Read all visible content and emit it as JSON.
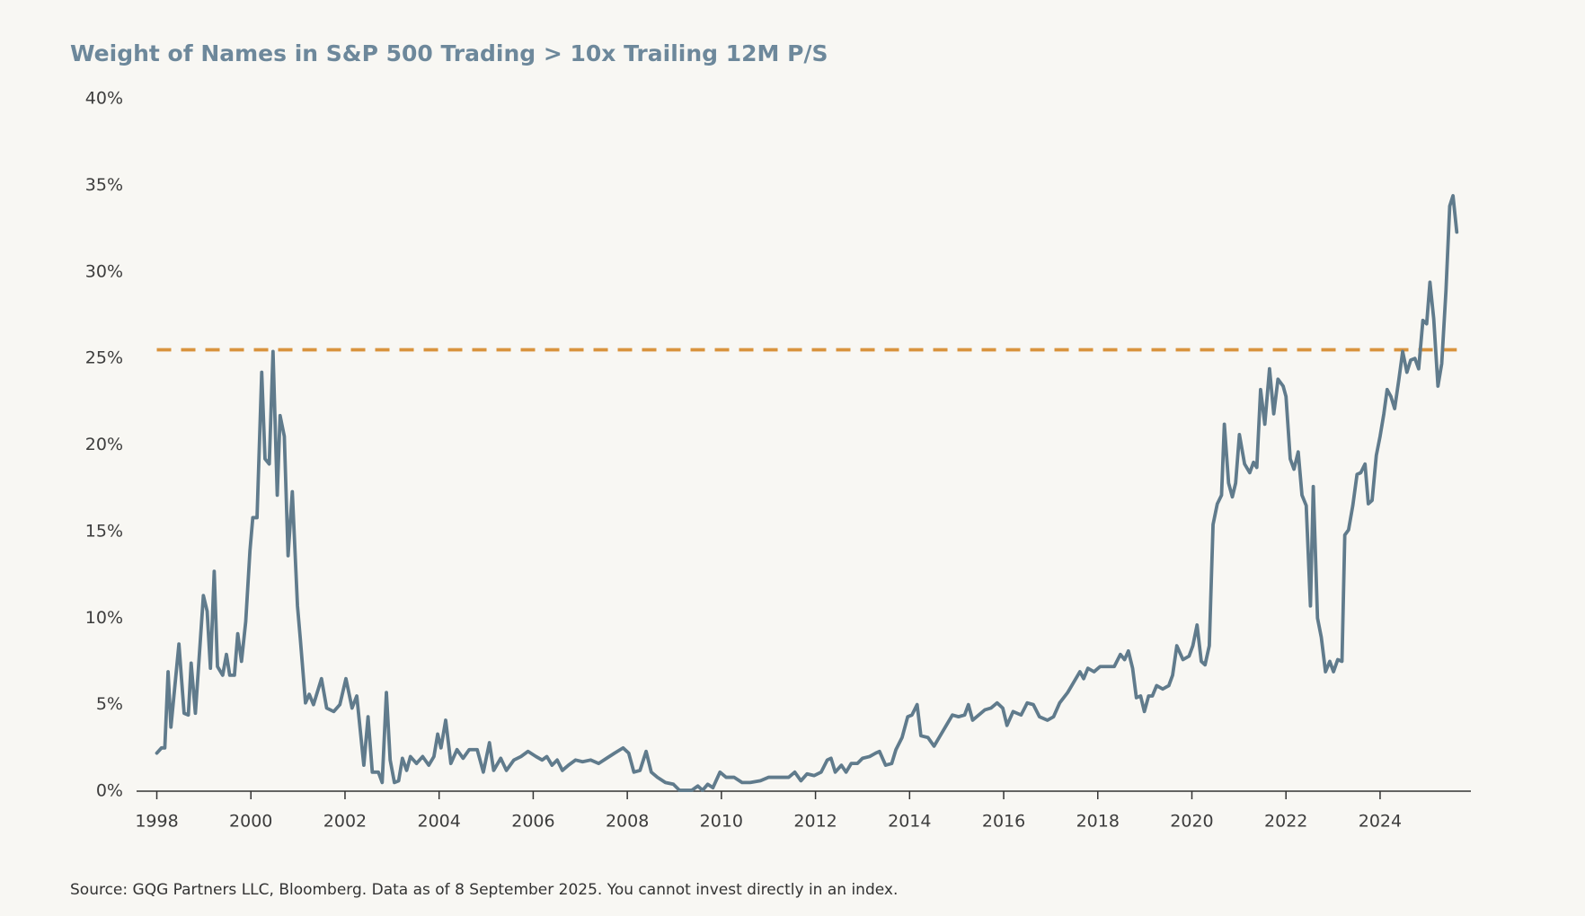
{
  "chart_data": {
    "type": "line",
    "title": "Weight of Names in S&P 500 Trading > 10x Trailing 12M P/S",
    "source": "Source: GQG Partners LLC, Bloomberg. Data as of 8 September 2025. You cannot invest directly in an index.",
    "color": "#607b8c",
    "x": [
      1998.0,
      1998.1,
      1998.17,
      1998.24,
      1998.3,
      1998.47,
      1998.58,
      1998.67,
      1998.73,
      1998.82,
      1998.99,
      1999.07,
      1999.14,
      1999.22,
      1999.29,
      1999.4,
      1999.48,
      1999.55,
      1999.65,
      1999.72,
      1999.8,
      1999.89,
      1999.98,
      2000.04,
      2000.13,
      2000.23,
      2000.3,
      2000.39,
      2000.47,
      2000.56,
      2000.62,
      2000.71,
      2000.79,
      2000.88,
      2000.99,
      2001.05,
      2001.16,
      2001.24,
      2001.33,
      2001.5,
      2001.61,
      2001.76,
      2001.89,
      2002.02,
      2002.15,
      2002.25,
      2002.4,
      2002.49,
      2002.58,
      2002.71,
      2002.79,
      2002.88,
      2002.96,
      2003.05,
      2003.14,
      2003.22,
      2003.31,
      2003.39,
      2003.52,
      2003.65,
      2003.78,
      2003.89,
      2003.97,
      2004.04,
      2004.14,
      2004.25,
      2004.38,
      2004.51,
      2004.64,
      2004.81,
      2004.94,
      2005.07,
      2005.16,
      2005.31,
      2005.43,
      2005.59,
      2005.74,
      2005.89,
      2006.06,
      2006.19,
      2006.29,
      2006.4,
      2006.51,
      2006.62,
      2006.75,
      2006.9,
      2007.05,
      2007.22,
      2007.39,
      2007.56,
      2007.73,
      2007.91,
      2008.03,
      2008.14,
      2008.27,
      2008.4,
      2008.51,
      2008.64,
      2008.81,
      2008.98,
      2009.11,
      2009.37,
      2009.5,
      2009.6,
      2009.71,
      2009.82,
      2009.97,
      2010.1,
      2010.27,
      2010.44,
      2010.61,
      2010.83,
      2011.0,
      2011.21,
      2011.43,
      2011.56,
      2011.69,
      2011.82,
      2011.97,
      2012.12,
      2012.25,
      2012.33,
      2012.42,
      2012.55,
      2012.65,
      2012.76,
      2012.89,
      2013.0,
      2013.15,
      2013.28,
      2013.36,
      2013.49,
      2013.62,
      2013.71,
      2013.84,
      2013.96,
      2014.05,
      2014.16,
      2014.24,
      2014.39,
      2014.52,
      2014.65,
      2014.78,
      2014.91,
      2015.04,
      2015.17,
      2015.25,
      2015.34,
      2015.47,
      2015.6,
      2015.73,
      2015.86,
      2015.98,
      2016.07,
      2016.2,
      2016.37,
      2016.5,
      2016.63,
      2016.76,
      2016.93,
      2017.06,
      2017.19,
      2017.36,
      2017.49,
      2017.62,
      2017.7,
      2017.79,
      2017.92,
      2018.05,
      2018.22,
      2018.35,
      2018.48,
      2018.57,
      2018.65,
      2018.74,
      2018.82,
      2018.91,
      2018.99,
      2019.08,
      2019.16,
      2019.25,
      2019.38,
      2019.51,
      2019.59,
      2019.68,
      2019.81,
      2019.94,
      2020.02,
      2020.11,
      2020.2,
      2020.28,
      2020.37,
      2020.45,
      2020.54,
      2020.63,
      2020.69,
      2020.78,
      2020.86,
      2020.93,
      2021.01,
      2021.12,
      2021.23,
      2021.31,
      2021.38,
      2021.46,
      2021.55,
      2021.65,
      2021.74,
      2021.83,
      2021.94,
      2022.0,
      2022.09,
      2022.17,
      2022.26,
      2022.34,
      2022.43,
      2022.52,
      2022.58,
      2022.67,
      2022.75,
      2022.84,
      2022.93,
      2023.01,
      2023.1,
      2023.19,
      2023.25,
      2023.33,
      2023.42,
      2023.51,
      2023.59,
      2023.68,
      2023.75,
      2023.83,
      2023.92,
      2024.0,
      2024.08,
      2024.15,
      2024.23,
      2024.31,
      2024.4,
      2024.48,
      2024.57,
      2024.65,
      2024.74,
      2024.82,
      2024.91,
      2024.99,
      2025.06,
      2025.14,
      2025.23,
      2025.31,
      2025.4,
      2025.48,
      2025.55,
      2025.63
    ],
    "values": [
      2.2,
      2.5,
      2.5,
      6.9,
      3.7,
      8.5,
      4.5,
      4.4,
      7.4,
      4.5,
      11.3,
      10.4,
      7.1,
      12.7,
      7.2,
      6.7,
      7.9,
      6.7,
      6.7,
      9.1,
      7.5,
      9.8,
      13.9,
      15.8,
      15.8,
      24.2,
      19.2,
      18.9,
      25.4,
      17.1,
      21.7,
      20.5,
      13.6,
      17.3,
      10.7,
      8.8,
      5.1,
      5.6,
      5.0,
      6.5,
      4.8,
      4.6,
      5.0,
      6.5,
      4.8,
      5.5,
      1.5,
      4.3,
      1.1,
      1.1,
      0.5,
      5.7,
      1.8,
      0.5,
      0.6,
      1.9,
      1.2,
      2.0,
      1.6,
      2.0,
      1.5,
      2.0,
      3.3,
      2.5,
      4.1,
      1.6,
      2.4,
      1.9,
      2.4,
      2.4,
      1.1,
      2.8,
      1.2,
      1.9,
      1.2,
      1.8,
      2.0,
      2.3,
      2.0,
      1.8,
      2.0,
      1.5,
      1.8,
      1.2,
      1.5,
      1.8,
      1.7,
      1.8,
      1.6,
      1.9,
      2.2,
      2.5,
      2.2,
      1.1,
      1.2,
      2.3,
      1.1,
      0.8,
      0.5,
      0.4,
      0.05,
      0.05,
      0.3,
      0.05,
      0.4,
      0.2,
      1.1,
      0.8,
      0.8,
      0.5,
      0.5,
      0.6,
      0.8,
      0.8,
      0.8,
      1.1,
      0.6,
      1.0,
      0.9,
      1.1,
      1.8,
      1.9,
      1.1,
      1.5,
      1.1,
      1.6,
      1.6,
      1.9,
      2.0,
      2.2,
      2.3,
      1.5,
      1.6,
      2.4,
      3.1,
      4.3,
      4.4,
      5.0,
      3.2,
      3.1,
      2.6,
      3.2,
      3.8,
      4.4,
      4.3,
      4.4,
      5.0,
      4.1,
      4.4,
      4.7,
      4.8,
      5.1,
      4.8,
      3.8,
      4.6,
      4.4,
      5.1,
      5.0,
      4.3,
      4.1,
      4.3,
      5.1,
      5.7,
      6.3,
      6.9,
      6.5,
      7.1,
      6.9,
      7.2,
      7.2,
      7.2,
      7.9,
      7.6,
      8.1,
      7.1,
      5.4,
      5.5,
      4.6,
      5.5,
      5.5,
      6.1,
      5.9,
      6.1,
      6.7,
      8.4,
      7.6,
      7.8,
      8.4,
      9.6,
      7.5,
      7.3,
      8.4,
      15.4,
      16.6,
      17.1,
      21.2,
      17.8,
      17.0,
      17.8,
      20.6,
      18.9,
      18.4,
      19.0,
      18.7,
      23.2,
      21.2,
      24.4,
      21.8,
      23.8,
      23.4,
      22.8,
      19.2,
      18.6,
      19.6,
      17.1,
      16.5,
      10.7,
      17.6,
      10.0,
      8.9,
      6.9,
      7.5,
      6.9,
      7.6,
      7.5,
      14.8,
      15.1,
      16.5,
      18.3,
      18.4,
      18.9,
      16.6,
      16.8,
      19.4,
      20.5,
      21.8,
      23.2,
      22.8,
      22.1,
      23.8,
      25.4,
      24.2,
      24.9,
      25.0,
      24.4,
      27.2,
      27.0,
      29.4,
      27.3,
      23.4,
      24.7,
      28.9,
      33.8,
      34.4,
      32.3
    ],
    "reference_line": {
      "value": 25.5,
      "color": "#d9933d",
      "style": "dashed"
    },
    "xlim": [
      1997.57,
      2025.93
    ],
    "xticks": [
      1998,
      2000,
      2002,
      2004,
      2006,
      2008,
      2010,
      2012,
      2014,
      2016,
      2018,
      2020,
      2022,
      2024
    ],
    "ylim": [
      0,
      40
    ],
    "yticks": [
      {
        "value": 0,
        "label": "0%"
      },
      {
        "value": 5,
        "label": "5%"
      },
      {
        "value": 10,
        "label": "10%"
      },
      {
        "value": 15,
        "label": "15%"
      },
      {
        "value": 20,
        "label": "20%"
      },
      {
        "value": 25,
        "label": "25%"
      },
      {
        "value": 30,
        "label": "30%"
      },
      {
        "value": 35,
        "label": "35%"
      },
      {
        "value": 40,
        "label": "40%"
      }
    ],
    "grid": false
  }
}
